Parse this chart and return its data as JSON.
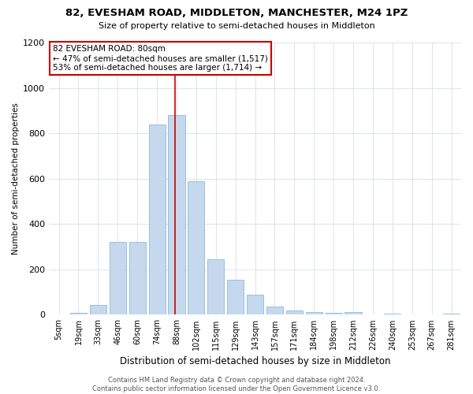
{
  "title": "82, EVESHAM ROAD, MIDDLETON, MANCHESTER, M24 1PZ",
  "subtitle": "Size of property relative to semi-detached houses in Middleton",
  "xlabel": "Distribution of semi-detached houses by size in Middleton",
  "ylabel": "Number of semi-detached properties",
  "footer": "Contains HM Land Registry data © Crown copyright and database right 2024.\nContains public sector information licensed under the Open Government Licence v3.0.",
  "categories": [
    "5sqm",
    "19sqm",
    "33sqm",
    "46sqm",
    "60sqm",
    "74sqm",
    "88sqm",
    "102sqm",
    "115sqm",
    "129sqm",
    "143sqm",
    "157sqm",
    "171sqm",
    "184sqm",
    "198sqm",
    "212sqm",
    "226sqm",
    "240sqm",
    "253sqm",
    "267sqm",
    "281sqm"
  ],
  "values": [
    3,
    10,
    42,
    320,
    320,
    840,
    880,
    590,
    245,
    155,
    90,
    35,
    18,
    12,
    8,
    12,
    3,
    5,
    3,
    2,
    5
  ],
  "vline_index": 6,
  "bar_color": "#c5d8ed",
  "bar_edge_color": "#7bafd4",
  "annotation_text": "82 EVESHAM ROAD: 80sqm\n← 47% of semi-detached houses are smaller (1,517)\n53% of semi-detached houses are larger (1,714) →",
  "annotation_box_color": "#ffffff",
  "annotation_box_edge_color": "#cc0000",
  "vline_color": "#cc0000",
  "ylim": [
    0,
    1200
  ],
  "yticks": [
    0,
    200,
    400,
    600,
    800,
    1000,
    1200
  ],
  "background_color": "#ffffff",
  "grid_color": "#d0d8e4"
}
